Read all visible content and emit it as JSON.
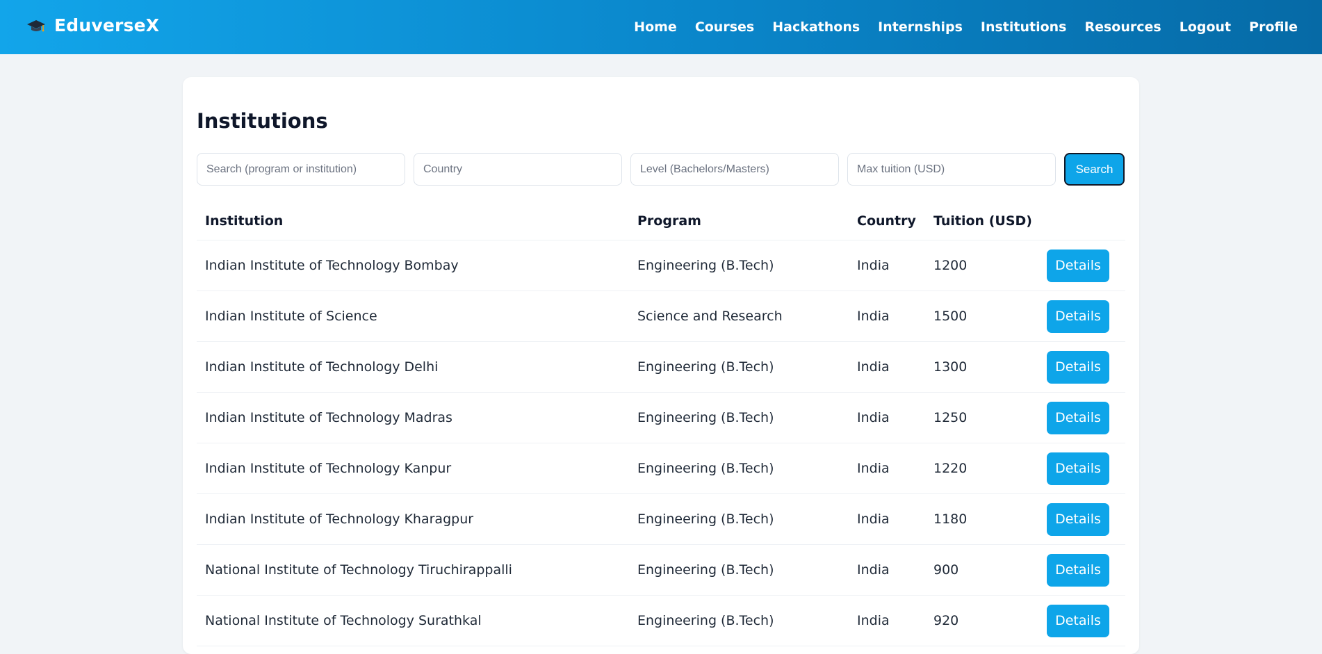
{
  "brand": {
    "name": "EduverseX",
    "icon": "graduation-cap-icon"
  },
  "nav": {
    "items": [
      {
        "label": "Home"
      },
      {
        "label": "Courses"
      },
      {
        "label": "Hackathons"
      },
      {
        "label": "Internships"
      },
      {
        "label": "Institutions"
      },
      {
        "label": "Resources"
      },
      {
        "label": "Logout"
      },
      {
        "label": "Profile"
      }
    ]
  },
  "page": {
    "title": "Institutions"
  },
  "filters": {
    "search_placeholder": "Search (program or institution)",
    "country_placeholder": "Country",
    "level_placeholder": "Level (Bachelors/Masters)",
    "tuition_placeholder": "Max tuition (USD)",
    "search_button": "Search"
  },
  "table": {
    "headers": {
      "institution": "Institution",
      "program": "Program",
      "country": "Country",
      "tuition": "Tuition (USD)"
    },
    "details_label": "Details",
    "rows": [
      {
        "institution": "Indian Institute of Technology Bombay",
        "program": "Engineering (B.Tech)",
        "country": "India",
        "tuition": "1200"
      },
      {
        "institution": "Indian Institute of Science",
        "program": "Science and Research",
        "country": "India",
        "tuition": "1500"
      },
      {
        "institution": "Indian Institute of Technology Delhi",
        "program": "Engineering (B.Tech)",
        "country": "India",
        "tuition": "1300"
      },
      {
        "institution": "Indian Institute of Technology Madras",
        "program": "Engineering (B.Tech)",
        "country": "India",
        "tuition": "1250"
      },
      {
        "institution": "Indian Institute of Technology Kanpur",
        "program": "Engineering (B.Tech)",
        "country": "India",
        "tuition": "1220"
      },
      {
        "institution": "Indian Institute of Technology Kharagpur",
        "program": "Engineering (B.Tech)",
        "country": "India",
        "tuition": "1180"
      },
      {
        "institution": "National Institute of Technology Tiruchirappalli",
        "program": "Engineering (B.Tech)",
        "country": "India",
        "tuition": "900"
      },
      {
        "institution": "National Institute of Technology Surathkal",
        "program": "Engineering (B.Tech)",
        "country": "India",
        "tuition": "920"
      }
    ]
  },
  "colors": {
    "accent": "#0ea5e9",
    "nav_gradient_start": "#12a5ea",
    "nav_gradient_end": "#066aa6",
    "page_background": "#f1f4f7"
  }
}
